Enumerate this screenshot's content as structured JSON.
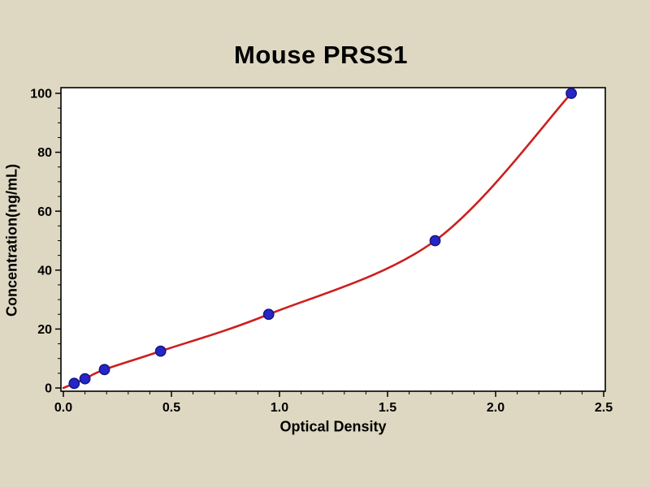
{
  "page": {
    "background": "#ded8c2"
  },
  "chart_data": {
    "type": "scatter",
    "title": "Mouse PRSS1",
    "xlabel": "Optical Density",
    "ylabel": "Concentration(ng/mL)",
    "xlim": [
      0,
      2.5
    ],
    "ylim": [
      0,
      100
    ],
    "grid": false,
    "legend_position": "none",
    "xticks": [
      {
        "v": 0.0,
        "label": "0.0"
      },
      {
        "v": 0.5,
        "label": "0.5"
      },
      {
        "v": 1.0,
        "label": "1.0"
      },
      {
        "v": 1.5,
        "label": "1.5"
      },
      {
        "v": 2.0,
        "label": "2.0"
      },
      {
        "v": 2.5,
        "label": "2.5"
      }
    ],
    "yticks": [
      {
        "v": 0,
        "label": "0"
      },
      {
        "v": 20,
        "label": "20"
      },
      {
        "v": 40,
        "label": "40"
      },
      {
        "v": 60,
        "label": "60"
      },
      {
        "v": 80,
        "label": "80"
      },
      {
        "v": 100,
        "label": "100"
      }
    ],
    "x_minor_step": 0.1,
    "y_minor_step": 5,
    "curve_start": {
      "x": 0.0,
      "y": 0.0
    },
    "points": [
      {
        "x": 0.05,
        "y": 1.56
      },
      {
        "x": 0.1,
        "y": 3.12
      },
      {
        "x": 0.19,
        "y": 6.25
      },
      {
        "x": 0.45,
        "y": 12.5
      },
      {
        "x": 0.95,
        "y": 25
      },
      {
        "x": 1.72,
        "y": 50
      },
      {
        "x": 2.35,
        "y": 100
      }
    ],
    "colors": {
      "curve": "#cc1f1f",
      "marker_fill": "#2525c8",
      "marker_edge": "#14147a",
      "plot_background": "#ffffff",
      "axis": "#000000",
      "tick_text": "#000000"
    }
  }
}
